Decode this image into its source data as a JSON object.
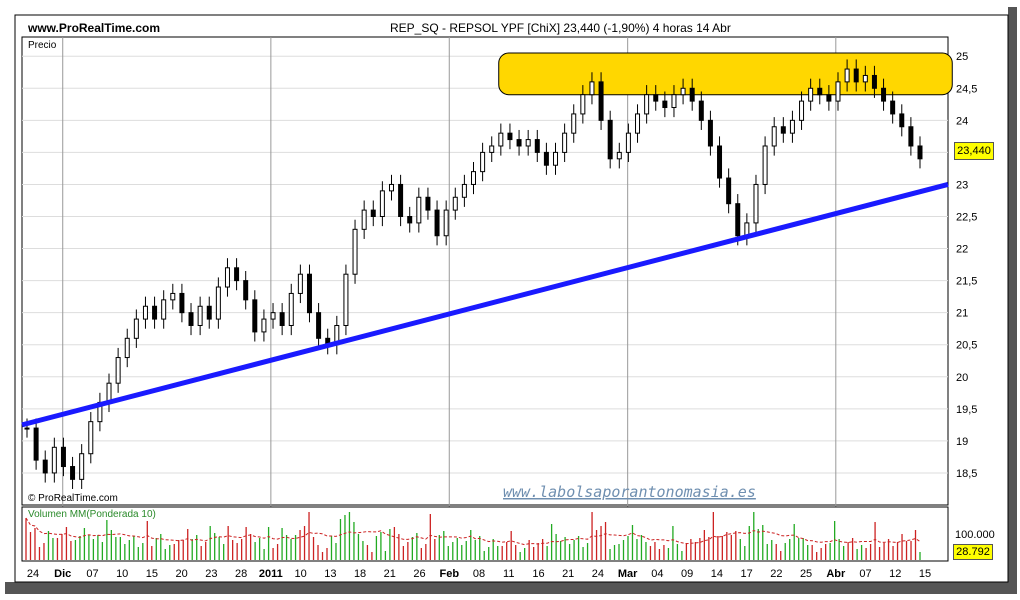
{
  "header": {
    "site": "www.ProRealTime.com",
    "title": "REP_SQ - REPSOL YPF [ChiX]   23,440 (-1,90%)    4 horas  14 Abr"
  },
  "price_panel": {
    "label": "Precio",
    "copyright": "© ProRealTime.com",
    "watermark": "www.labolsaporantonomasia.es",
    "current_price": "23,440"
  },
  "volume_panel": {
    "label": "Volumen MM(Ponderada 10)",
    "tick": "100.000",
    "current_volume": "28.792"
  },
  "colors": {
    "candles": "#000000",
    "trendline": "#1a1aff",
    "resistance_zone": "#ffd700",
    "volume_up": "#22aa22",
    "volume_down": "#cc2222",
    "volume_ma": "#cc2222",
    "frame_shadow": "#555555"
  },
  "chart_data": {
    "type": "candlestick",
    "y_ticks": [
      "18,5",
      "19",
      "19,5",
      "20",
      "20,5",
      "21",
      "21,5",
      "22",
      "22,5",
      "23",
      "23,5",
      "24",
      "24,5",
      "25"
    ],
    "x_ticks": [
      "24",
      "Dic",
      "07",
      "10",
      "15",
      "20",
      "23",
      "28",
      "2011",
      "10",
      "13",
      "18",
      "21",
      "26",
      "Feb",
      "08",
      "11",
      "16",
      "21",
      "24",
      "Mar",
      "04",
      "09",
      "14",
      "17",
      "22",
      "25",
      "Abr",
      "07",
      "12",
      "15"
    ],
    "y_range": [
      18.0,
      25.3
    ],
    "close_series": [
      19.2,
      18.7,
      18.5,
      18.9,
      18.6,
      18.4,
      18.8,
      19.3,
      19.6,
      19.9,
      20.3,
      20.6,
      20.9,
      21.1,
      20.9,
      21.2,
      21.3,
      21.0,
      20.8,
      21.1,
      20.9,
      21.4,
      21.7,
      21.5,
      21.2,
      20.7,
      20.9,
      21.0,
      20.8,
      21.3,
      21.6,
      21.0,
      20.6,
      20.5,
      20.8,
      21.6,
      22.3,
      22.6,
      22.5,
      22.9,
      23.0,
      22.5,
      22.4,
      22.8,
      22.6,
      22.2,
      22.6,
      22.8,
      23.0,
      23.2,
      23.5,
      23.6,
      23.8,
      23.7,
      23.6,
      23.7,
      23.5,
      23.3,
      23.5,
      23.8,
      24.1,
      24.4,
      24.6,
      24.0,
      23.4,
      23.5,
      23.8,
      24.1,
      24.4,
      24.3,
      24.2,
      24.4,
      24.5,
      24.3,
      24.0,
      23.6,
      23.1,
      22.7,
      22.2,
      22.4,
      23.0,
      23.6,
      23.9,
      23.8,
      24.0,
      24.3,
      24.5,
      24.4,
      24.3,
      24.6,
      24.8,
      24.6,
      24.7,
      24.5,
      24.3,
      24.1,
      23.9,
      23.6,
      23.4
    ],
    "trendline": {
      "start": {
        "x": "24",
        "y": 19.25
      },
      "end": {
        "x": "15",
        "y": 23.0
      }
    },
    "resistance_zone": {
      "y_low": 24.4,
      "y_high": 25.05,
      "x_start": "11",
      "x_end": "12"
    },
    "volume_ma_period": 10
  }
}
